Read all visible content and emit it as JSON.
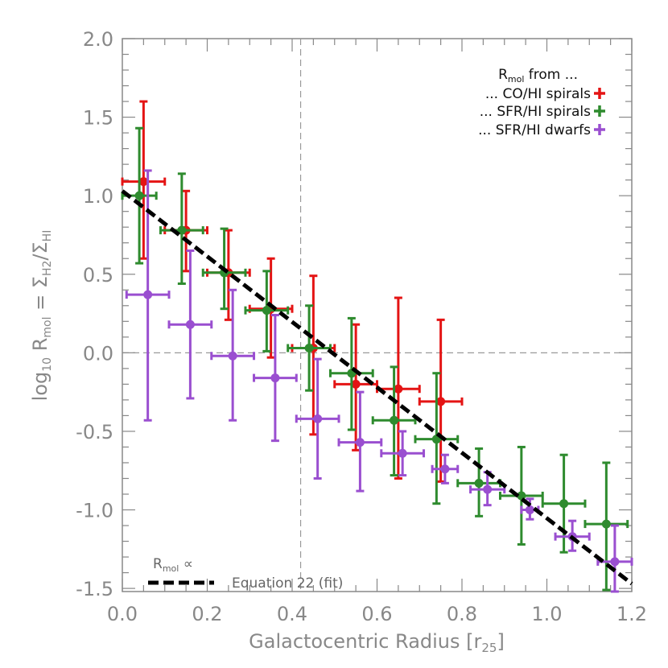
{
  "chart_data": {
    "type": "scatter",
    "xlabel_main": "Galactocentric Radius [r",
    "xlabel_sub": "25",
    "xlabel_end": "]",
    "ylabel_parts": [
      "log",
      "10",
      " R",
      "mol",
      " = Σ",
      "H2",
      "/Σ",
      "HI"
    ],
    "xlim": [
      0.0,
      1.2
    ],
    "ylim": [
      -1.52,
      2.0
    ],
    "xticks": [
      0.0,
      0.2,
      0.4,
      0.6,
      0.8,
      1.0,
      1.2
    ],
    "yticks": [
      -1.5,
      -1.0,
      -0.5,
      0.0,
      0.5,
      1.0,
      1.5,
      2.0
    ],
    "xtick_labels": [
      "0.0",
      "0.2",
      "0.4",
      "0.6",
      "0.8",
      "1.0",
      "1.2"
    ],
    "ytick_labels": [
      "-1.5",
      "-1.0",
      "-0.5",
      "0.0",
      "0.5",
      "1.0",
      "1.5",
      "2.0"
    ],
    "reference_lines": {
      "x": 0.42,
      "y": 0.0
    },
    "legend": {
      "title_main": "R",
      "title_sub": "mol",
      "title_end": " from ...",
      "entries": [
        {
          "label": "... CO/HI spirals",
          "color": "#e41414"
        },
        {
          "label": "... SFR/HI spirals",
          "color": "#2e8b2e"
        },
        {
          "label": "... SFR/HI dwarfs",
          "color": "#9a4fd0"
        }
      ]
    },
    "fit_note": {
      "line1_main": "R",
      "line1_sub": "mol",
      "line1_end": " ∝",
      "line2": "Equation 22 (fit)",
      "x0": 0.0,
      "y0": 1.03,
      "x1": 1.2,
      "y1": -1.47
    },
    "series": [
      {
        "name": "CO/HI spirals",
        "color": "#e41414",
        "points": [
          {
            "x": 0.05,
            "y": 1.09,
            "xerr": 0.05,
            "ylo": 0.6,
            "yhi": 1.6
          },
          {
            "x": 0.15,
            "y": 0.78,
            "xerr": 0.05,
            "ylo": 0.52,
            "yhi": 1.03
          },
          {
            "x": 0.25,
            "y": 0.51,
            "xerr": 0.05,
            "ylo": 0.21,
            "yhi": 0.78
          },
          {
            "x": 0.35,
            "y": 0.28,
            "xerr": 0.05,
            "ylo": -0.03,
            "yhi": 0.6
          },
          {
            "x": 0.45,
            "y": 0.03,
            "xerr": 0.05,
            "ylo": -0.52,
            "yhi": 0.49
          },
          {
            "x": 0.55,
            "y": -0.2,
            "xerr": 0.05,
            "ylo": -0.62,
            "yhi": 0.18
          },
          {
            "x": 0.65,
            "y": -0.23,
            "xerr": 0.05,
            "ylo": -0.8,
            "yhi": 0.35
          },
          {
            "x": 0.75,
            "y": -0.31,
            "xerr": 0.05,
            "ylo": -0.82,
            "yhi": 0.21
          }
        ]
      },
      {
        "name": "SFR/HI spirals",
        "color": "#2e8b2e",
        "points": [
          {
            "x": 0.04,
            "y": 1.0,
            "xerr": 0.04,
            "ylo": 0.57,
            "yhi": 1.43
          },
          {
            "x": 0.14,
            "y": 0.78,
            "xerr": 0.05,
            "ylo": 0.44,
            "yhi": 1.14
          },
          {
            "x": 0.24,
            "y": 0.51,
            "xerr": 0.05,
            "ylo": 0.28,
            "yhi": 0.79
          },
          {
            "x": 0.34,
            "y": 0.27,
            "xerr": 0.05,
            "ylo": 0.01,
            "yhi": 0.52
          },
          {
            "x": 0.44,
            "y": 0.03,
            "xerr": 0.05,
            "ylo": -0.24,
            "yhi": 0.3
          },
          {
            "x": 0.54,
            "y": -0.13,
            "xerr": 0.05,
            "ylo": -0.49,
            "yhi": 0.22
          },
          {
            "x": 0.64,
            "y": -0.43,
            "xerr": 0.05,
            "ylo": -0.78,
            "yhi": -0.09
          },
          {
            "x": 0.74,
            "y": -0.55,
            "xerr": 0.05,
            "ylo": -0.96,
            "yhi": -0.13
          },
          {
            "x": 0.84,
            "y": -0.83,
            "xerr": 0.05,
            "ylo": -1.04,
            "yhi": -0.61
          },
          {
            "x": 0.94,
            "y": -0.91,
            "xerr": 0.05,
            "ylo": -1.22,
            "yhi": -0.6
          },
          {
            "x": 1.04,
            "y": -0.96,
            "xerr": 0.05,
            "ylo": -1.27,
            "yhi": -0.65
          },
          {
            "x": 1.14,
            "y": -1.09,
            "xerr": 0.05,
            "ylo": -1.51,
            "yhi": -0.7
          }
        ]
      },
      {
        "name": "SFR/HI dwarfs",
        "color": "#9a4fd0",
        "points": [
          {
            "x": 0.06,
            "y": 0.37,
            "xerr": 0.05,
            "ylo": -0.43,
            "yhi": 1.16
          },
          {
            "x": 0.16,
            "y": 0.18,
            "xerr": 0.05,
            "ylo": -0.29,
            "yhi": 0.65
          },
          {
            "x": 0.26,
            "y": -0.02,
            "xerr": 0.05,
            "ylo": -0.43,
            "yhi": 0.4
          },
          {
            "x": 0.36,
            "y": -0.16,
            "xerr": 0.05,
            "ylo": -0.56,
            "yhi": 0.24
          },
          {
            "x": 0.46,
            "y": -0.42,
            "xerr": 0.05,
            "ylo": -0.8,
            "yhi": -0.04
          },
          {
            "x": 0.56,
            "y": -0.57,
            "xerr": 0.05,
            "ylo": -0.88,
            "yhi": -0.25
          },
          {
            "x": 0.66,
            "y": -0.64,
            "xerr": 0.05,
            "ylo": -0.78,
            "yhi": -0.5
          },
          {
            "x": 0.76,
            "y": -0.74,
            "xerr": 0.03,
            "ylo": -0.83,
            "yhi": -0.65
          },
          {
            "x": 0.86,
            "y": -0.87,
            "xerr": 0.04,
            "ylo": -0.97,
            "yhi": -0.76
          },
          {
            "x": 0.96,
            "y": -1.0,
            "xerr": 0.02,
            "ylo": -1.06,
            "yhi": -0.93
          },
          {
            "x": 1.06,
            "y": -1.17,
            "xerr": 0.04,
            "ylo": -1.26,
            "yhi": -1.07
          },
          {
            "x": 1.16,
            "y": -1.33,
            "xerr": 0.04,
            "ylo": -1.52,
            "yhi": -1.1
          }
        ]
      }
    ]
  }
}
